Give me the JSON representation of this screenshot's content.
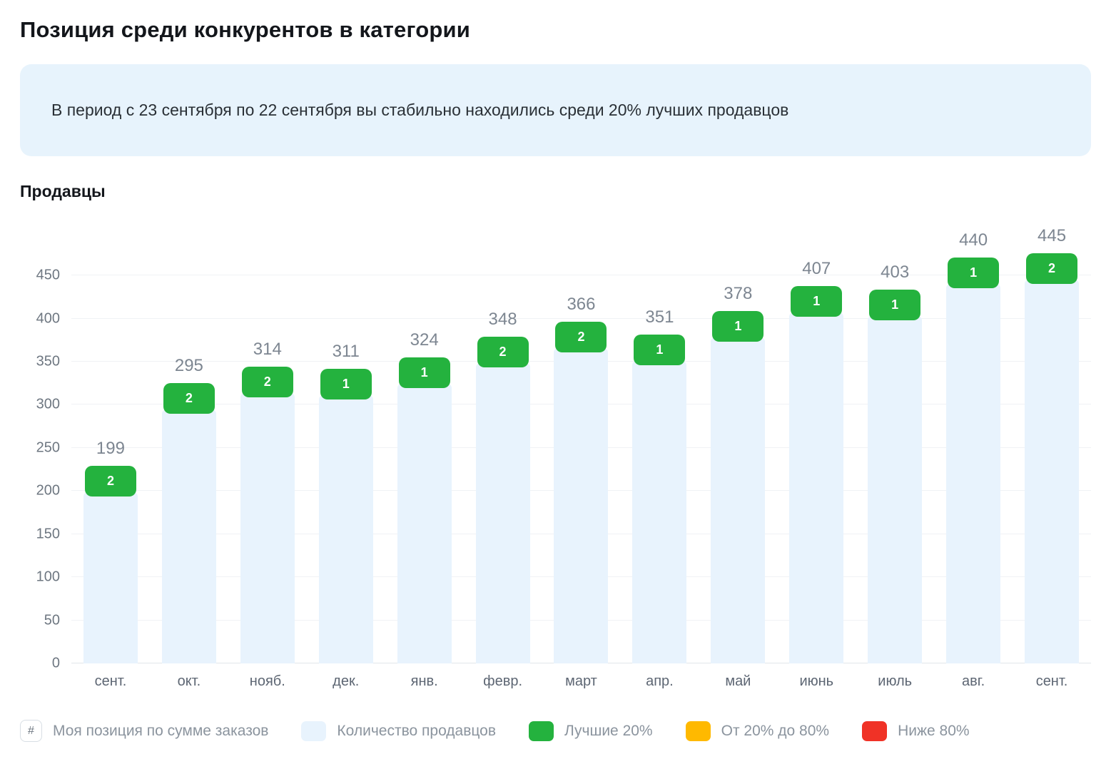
{
  "page": {
    "title": "Позиция среди конкурентов в категории"
  },
  "banner": {
    "text": "В период с 23 сентября по 22 сентября вы стабильно находились среди 20% лучших продавцов"
  },
  "section": {
    "title": "Продавцы"
  },
  "colors": {
    "banner_bg": "#e7f3fc",
    "bar": "#e8f3fd",
    "best20": "#24b23e",
    "mid": "#ffb900",
    "low": "#f03226"
  },
  "legend": {
    "items": [
      {
        "swatch": "hash",
        "symbol": "#",
        "label": "Моя позиция по сумме заказов"
      },
      {
        "swatch": "color",
        "color": "#e8f3fd",
        "label": "Количество продавцов"
      },
      {
        "swatch": "color",
        "color": "#24b23e",
        "label": "Лучшие 20%"
      },
      {
        "swatch": "color",
        "color": "#ffb900",
        "label": "От 20% до 80%"
      },
      {
        "swatch": "color",
        "color": "#f03226",
        "label": "Ниже 80%"
      }
    ]
  },
  "chart_data": {
    "type": "bar",
    "title": "Продавцы",
    "categories": [
      "сент.",
      "окт.",
      "нояб.",
      "дек.",
      "янв.",
      "февр.",
      "март",
      "апр.",
      "май",
      "июнь",
      "июль",
      "авг.",
      "сент."
    ],
    "series": [
      {
        "name": "Количество продавцов",
        "color": "#e8f3fd",
        "values": [
          199,
          295,
          314,
          311,
          324,
          348,
          366,
          351,
          378,
          407,
          403,
          440,
          445
        ]
      },
      {
        "name": "Моя позиция по сумме заказов",
        "style": "badge",
        "color": "#24b23e",
        "values": [
          2,
          2,
          2,
          1,
          1,
          2,
          2,
          1,
          1,
          1,
          1,
          1,
          2
        ]
      }
    ],
    "xlabel": "",
    "ylabel": "",
    "ylim": [
      0,
      470
    ],
    "yticks": [
      0,
      50,
      100,
      150,
      200,
      250,
      300,
      350,
      400,
      450
    ],
    "grid": true,
    "legend_position": "bottom"
  }
}
